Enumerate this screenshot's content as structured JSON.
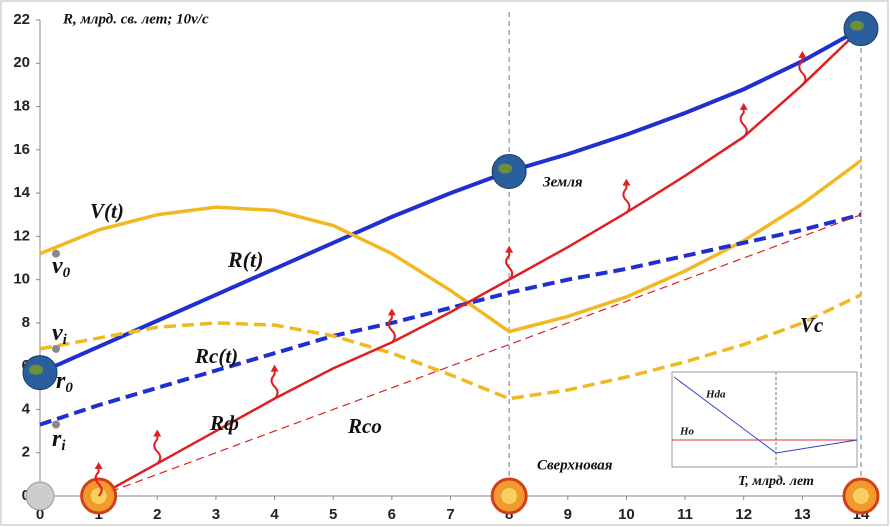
{
  "chart_data": {
    "type": "line",
    "y_axis_title": "R, млрд. св. лет; 10v/c",
    "x_axis_title": "T, млрд. лет",
    "x": [
      0,
      1,
      2,
      3,
      4,
      5,
      6,
      7,
      8,
      9,
      10,
      11,
      12,
      13,
      14
    ],
    "xlim": [
      0,
      14
    ],
    "xticks": [
      0,
      1,
      2,
      3,
      4,
      5,
      6,
      7,
      8,
      9,
      10,
      11,
      12,
      13,
      14
    ],
    "ylim": [
      0,
      22
    ],
    "yticks": [
      0,
      2,
      4,
      6,
      8,
      10,
      12,
      14,
      16,
      18,
      20,
      22
    ],
    "reference_lines_x": [
      8,
      14
    ],
    "series": [
      {
        "name": "R(t)",
        "color": "#1f2fd0",
        "dashed": false,
        "width": 4,
        "values": [
          5.7,
          6.9,
          8.1,
          9.3,
          10.5,
          11.7,
          12.9,
          14.0,
          15.0,
          15.8,
          16.7,
          17.7,
          18.8,
          20.1,
          21.6
        ]
      },
      {
        "name": "V(t)",
        "color": "#f2b824",
        "dashed": false,
        "width": 3.5,
        "values": [
          11.2,
          12.3,
          13.0,
          13.35,
          13.2,
          12.5,
          11.2,
          9.5,
          7.6,
          8.3,
          9.2,
          10.4,
          11.8,
          13.5,
          15.5
        ]
      },
      {
        "name": "Rc(t)",
        "color": "#1f2fd0",
        "dashed": true,
        "width": 4,
        "values": [
          3.3,
          4.2,
          5.0,
          5.8,
          6.6,
          7.4,
          8.0,
          8.7,
          9.4,
          10.0,
          10.5,
          11.1,
          11.7,
          12.3,
          13.0
        ]
      },
      {
        "name": "Vc",
        "color": "#f2b824",
        "dashed": true,
        "width": 3.5,
        "values": [
          6.8,
          7.3,
          7.8,
          8.0,
          7.9,
          7.4,
          6.6,
          5.6,
          4.5,
          4.9,
          5.5,
          6.2,
          7.0,
          8.0,
          9.3
        ]
      },
      {
        "name": "Rф",
        "color": "#e02020",
        "dashed": false,
        "width": 2.5,
        "values": [
          null,
          0,
          1.5,
          3.0,
          4.5,
          5.9,
          7.1,
          8.5,
          10.0,
          11.5,
          13.1,
          14.8,
          16.6,
          19.0,
          21.6
        ]
      },
      {
        "name": "Rco",
        "color": "#e02020",
        "dashed": true,
        "width": 1.2,
        "values": [
          null,
          0,
          1,
          2,
          3,
          4,
          5,
          6,
          7,
          8,
          9,
          10,
          11,
          12,
          13
        ]
      }
    ],
    "annotations": {
      "earth": "Земля",
      "supernova": "Сверхновая",
      "v0": {
        "text": "v",
        "sub": "0"
      },
      "vi": {
        "text": "v",
        "sub": "i"
      },
      "r0": {
        "text": "r",
        "sub": "0"
      },
      "ri": {
        "text": "r",
        "sub": "i"
      }
    },
    "inset": {
      "labels": [
        "Hda",
        "Ho"
      ]
    }
  }
}
